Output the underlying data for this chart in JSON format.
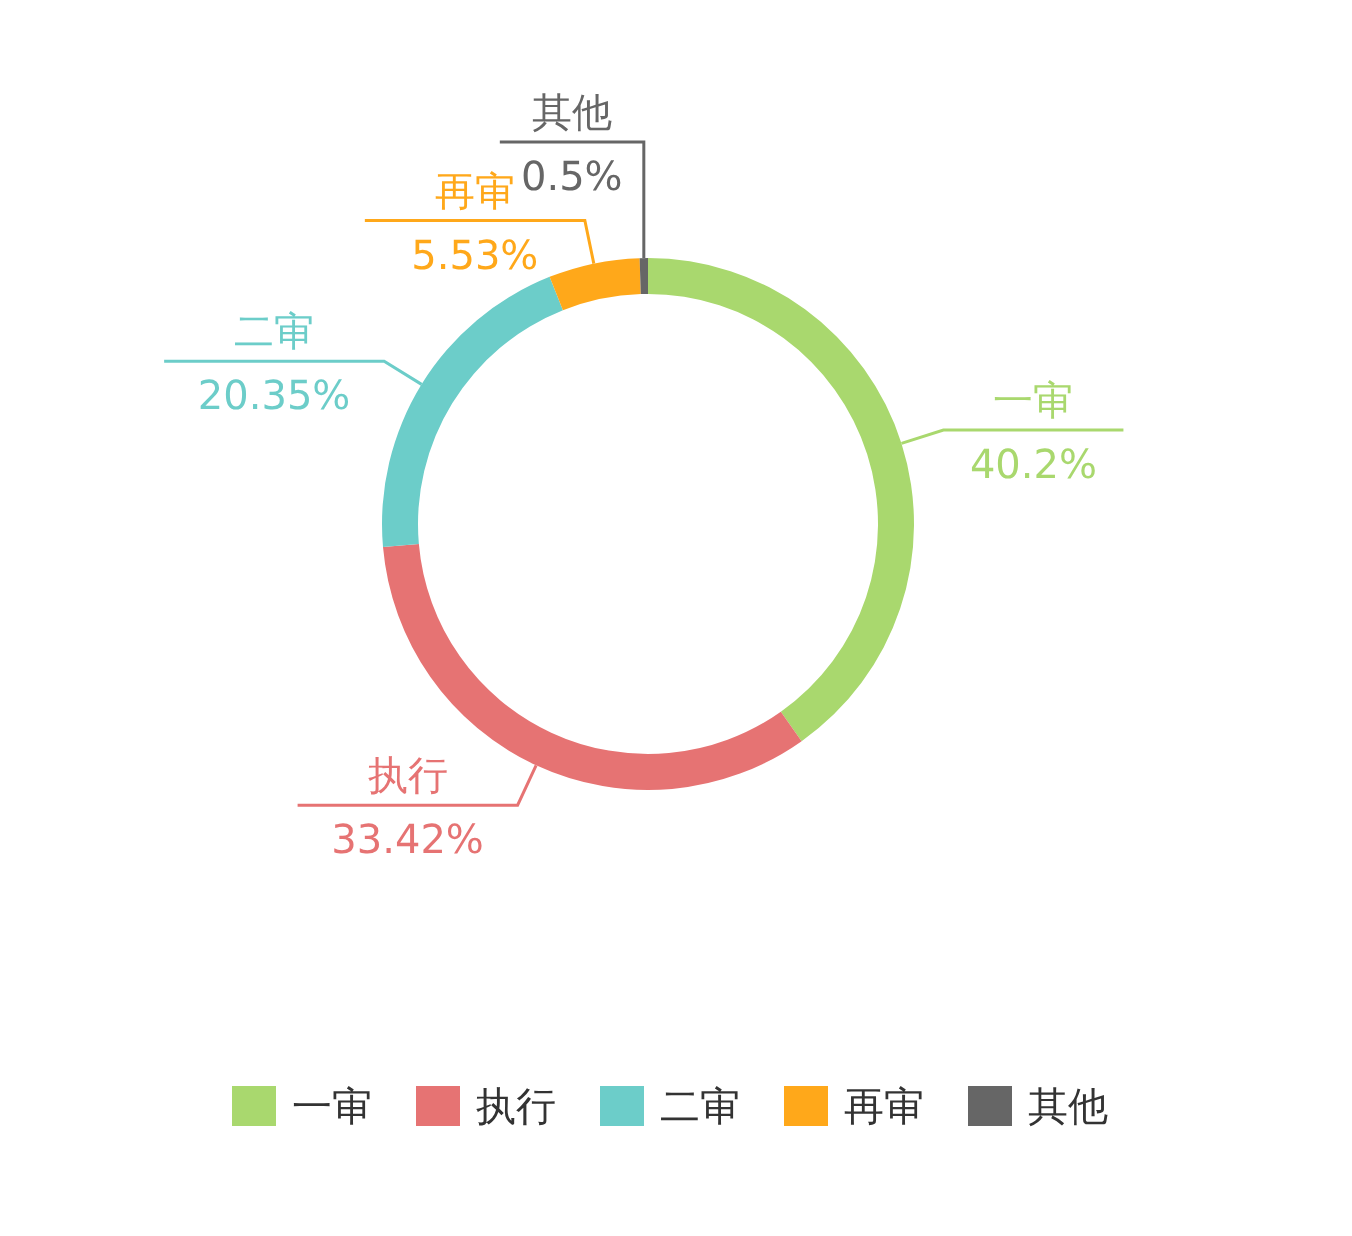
{
  "chart_data": {
    "type": "donut",
    "categories": [
      "一审",
      "执行",
      "二审",
      "再审",
      "其他"
    ],
    "values": [
      40.2,
      33.42,
      20.35,
      5.53,
      0.5
    ],
    "value_labels": [
      "40.2%",
      "33.42%",
      "20.35%",
      "5.53%",
      "0.5%"
    ],
    "colors": [
      "#a9d86e",
      "#e67373",
      "#6ccdc9",
      "#ffa81a",
      "#666666"
    ],
    "legend": "bottom"
  }
}
